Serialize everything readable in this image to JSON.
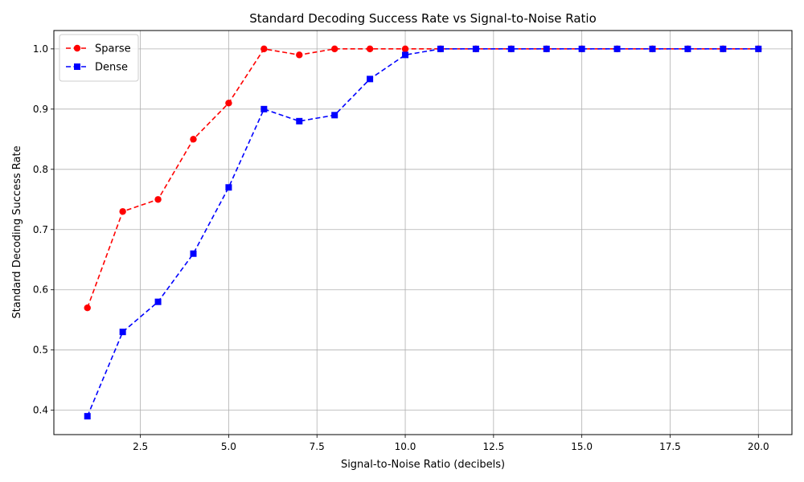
{
  "chart_data": {
    "type": "line",
    "title": "Standard Decoding Success Rate vs Signal-to-Noise Ratio",
    "xlabel": "Signal-to-Noise Ratio (decibels)",
    "ylabel": "Standard Decoding Success Rate",
    "x": [
      1,
      2,
      3,
      4,
      5,
      6,
      7,
      8,
      9,
      10,
      11,
      12,
      13,
      14,
      15,
      16,
      17,
      18,
      19,
      20
    ],
    "xlim": [
      0.05,
      20.95
    ],
    "ylim": [
      0.3595,
      1.0305
    ],
    "xticks": [
      2.5,
      5.0,
      7.5,
      10.0,
      12.5,
      15.0,
      17.5,
      20.0
    ],
    "xtick_labels": [
      "2.5",
      "5.0",
      "7.5",
      "10.0",
      "12.5",
      "15.0",
      "17.5",
      "20.0"
    ],
    "yticks": [
      0.4,
      0.5,
      0.6,
      0.7,
      0.8,
      0.9,
      1.0
    ],
    "ytick_labels": [
      "0.4",
      "0.5",
      "0.6",
      "0.7",
      "0.8",
      "0.9",
      "1.0"
    ],
    "grid": true,
    "legend_position": "top-left",
    "series": [
      {
        "name": "Sparse",
        "color": "#ff0000",
        "marker": "circle",
        "line_style": "dashed",
        "values": [
          0.57,
          0.73,
          0.75,
          0.85,
          0.91,
          1.0,
          0.99,
          1.0,
          1.0,
          1.0,
          1.0,
          1.0,
          1.0,
          1.0,
          1.0,
          1.0,
          1.0,
          1.0,
          1.0,
          1.0
        ]
      },
      {
        "name": "Dense",
        "color": "#0000ff",
        "marker": "square",
        "line_style": "dashed",
        "values": [
          0.39,
          0.53,
          0.58,
          0.66,
          0.77,
          0.9,
          0.88,
          0.89,
          0.95,
          0.99,
          1.0,
          1.0,
          1.0,
          1.0,
          1.0,
          1.0,
          1.0,
          1.0,
          1.0,
          1.0
        ]
      }
    ]
  }
}
